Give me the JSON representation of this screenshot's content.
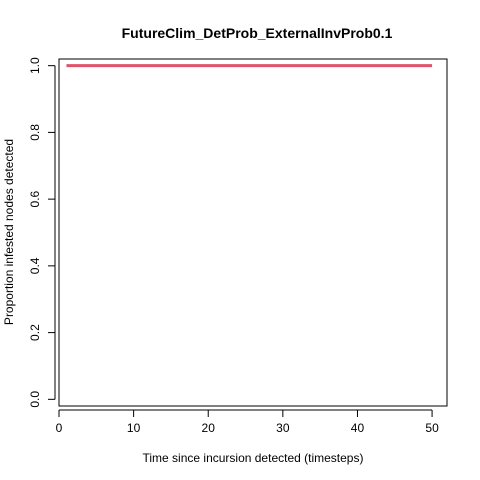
{
  "chart_data": {
    "type": "line",
    "title": "FutureClim_DetProb_ExternalInvProb0.1",
    "xlabel": "Time since incursion detected (timesteps)",
    "ylabel": "Proportion infested nodes detected",
    "xlim": [
      0,
      52
    ],
    "ylim": [
      -0.02,
      1.02
    ],
    "x_ticks": [
      0,
      10,
      20,
      30,
      40,
      50
    ],
    "x_tick_labels": [
      "0",
      "10",
      "20",
      "30",
      "40",
      "50"
    ],
    "y_ticks": [
      0.0,
      0.2,
      0.4,
      0.6,
      0.8,
      1.0
    ],
    "y_tick_labels": [
      "0.0",
      "0.2",
      "0.4",
      "0.6",
      "0.8",
      "1.0"
    ],
    "grid": false,
    "series": [
      {
        "color": "#DF536B",
        "x": [
          1,
          2,
          3,
          4,
          5,
          6,
          7,
          8,
          9,
          10,
          11,
          12,
          13,
          14,
          15,
          16,
          17,
          18,
          19,
          20,
          21,
          22,
          23,
          24,
          25,
          26,
          27,
          28,
          29,
          30,
          31,
          32,
          33,
          34,
          35,
          36,
          37,
          38,
          39,
          40,
          41,
          42,
          43,
          44,
          45,
          46,
          47,
          48,
          49,
          50
        ],
        "y": [
          1,
          1,
          1,
          1,
          1,
          1,
          1,
          1,
          1,
          1,
          1,
          1,
          1,
          1,
          1,
          1,
          1,
          1,
          1,
          1,
          1,
          1,
          1,
          1,
          1,
          1,
          1,
          1,
          1,
          1,
          1,
          1,
          1,
          1,
          1,
          1,
          1,
          1,
          1,
          1,
          1,
          1,
          1,
          1,
          1,
          1,
          1,
          1,
          1,
          1
        ]
      }
    ]
  }
}
